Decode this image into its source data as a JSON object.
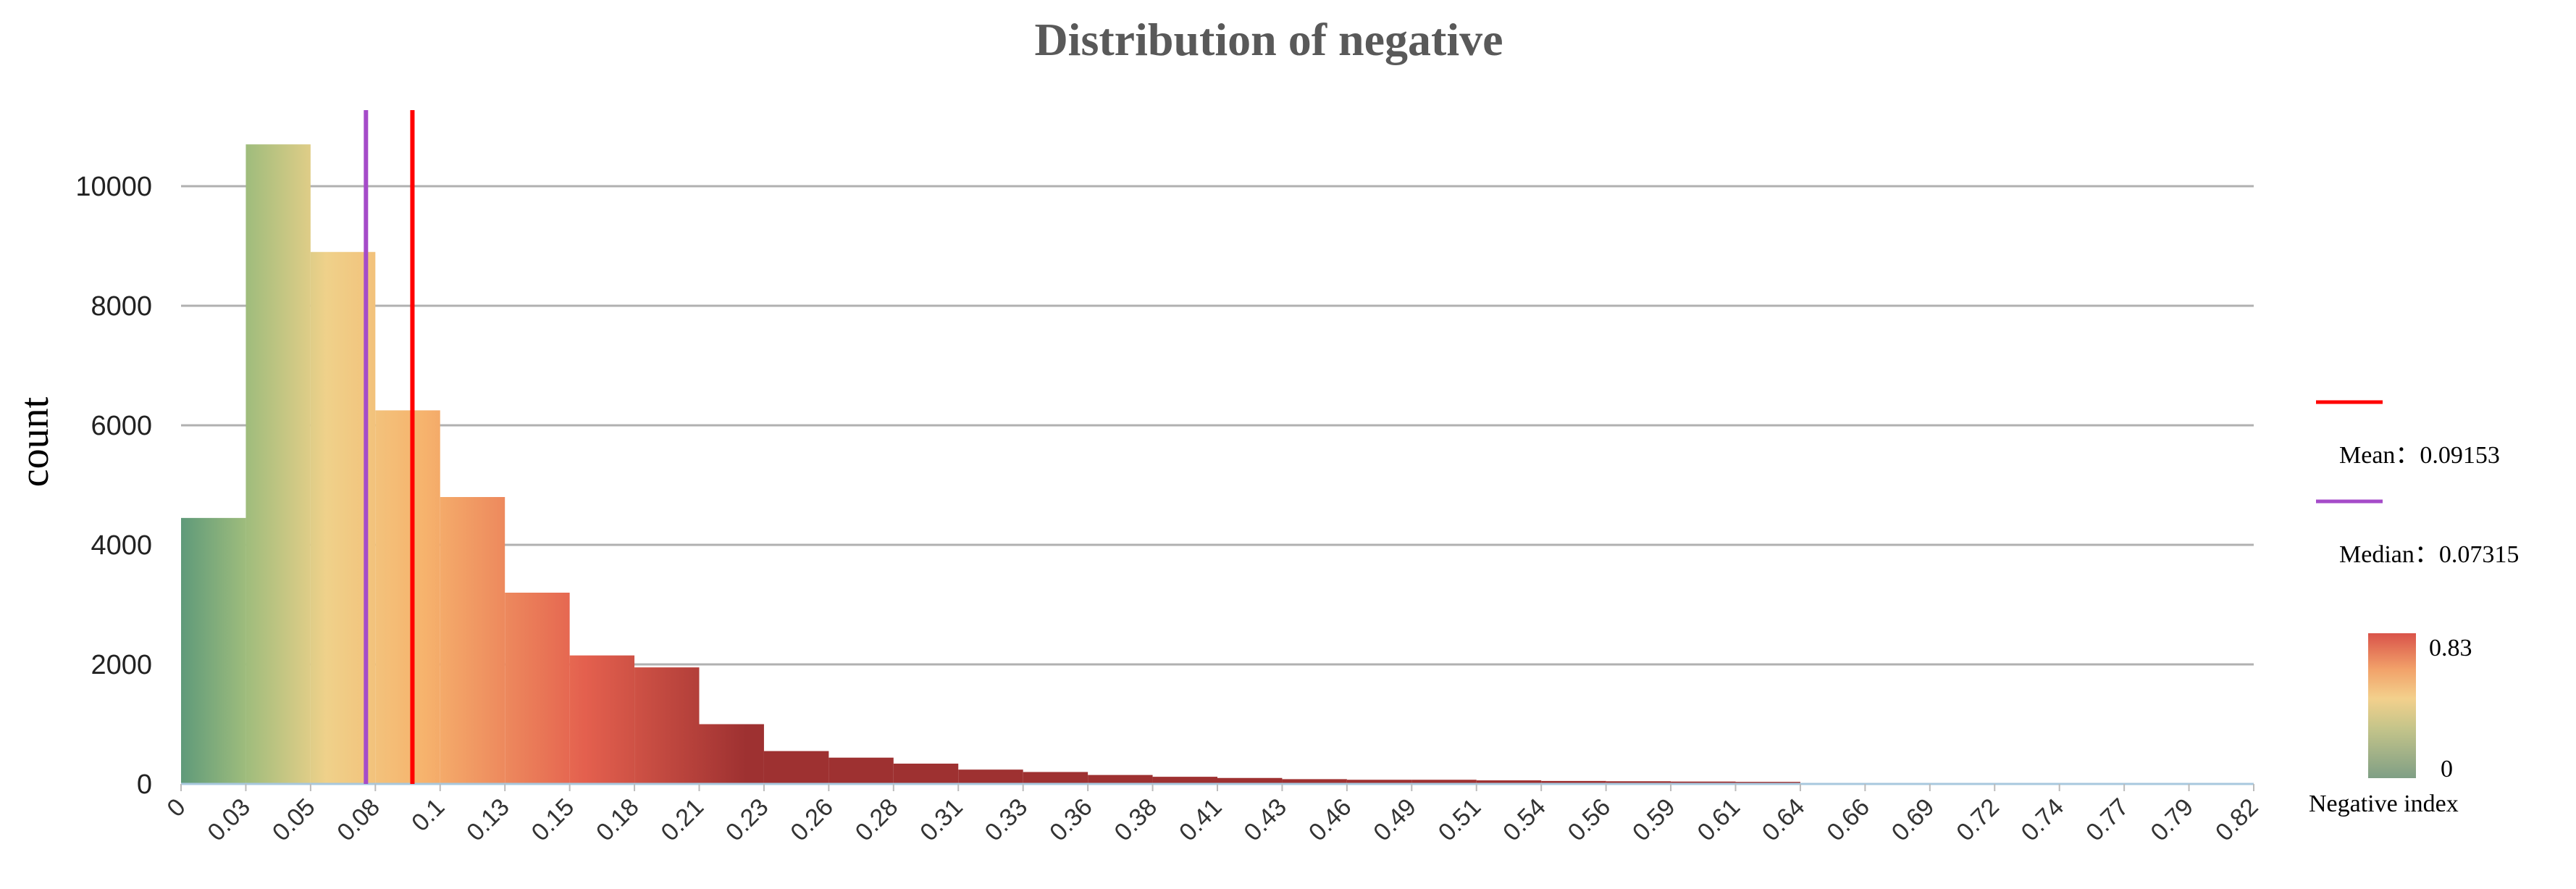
{
  "chart_data": {
    "type": "bar",
    "title": "Distribution of negative",
    "xlabel": "",
    "ylabel": "count",
    "ylim": [
      0,
      11000
    ],
    "yticks": [
      0,
      2000,
      4000,
      6000,
      8000,
      10000
    ],
    "grid": true,
    "x_tick_labels": [
      "0",
      "0.03",
      "0.05",
      "0.08",
      "0.1",
      "0.13",
      "0.15",
      "0.18",
      "0.21",
      "0.23",
      "0.26",
      "0.28",
      "0.31",
      "0.33",
      "0.36",
      "0.38",
      "0.41",
      "0.43",
      "0.46",
      "0.49",
      "0.51",
      "0.54",
      "0.56",
      "0.59",
      "0.61",
      "0.64",
      "0.66",
      "0.69",
      "0.72",
      "0.74",
      "0.77",
      "0.79",
      "0.82"
    ],
    "bins": [
      {
        "start": 0,
        "end": 0.03,
        "count": 4450
      },
      {
        "start": 0.03,
        "end": 0.05,
        "count": 10700
      },
      {
        "start": 0.05,
        "end": 0.08,
        "count": 8900
      },
      {
        "start": 0.08,
        "end": 0.1,
        "count": 6250
      },
      {
        "start": 0.1,
        "end": 0.13,
        "count": 4800
      },
      {
        "start": 0.13,
        "end": 0.15,
        "count": 3200
      },
      {
        "start": 0.15,
        "end": 0.18,
        "count": 2150
      },
      {
        "start": 0.18,
        "end": 0.21,
        "count": 1950
      },
      {
        "start": 0.21,
        "end": 0.23,
        "count": 1000
      },
      {
        "start": 0.23,
        "end": 0.26,
        "count": 550
      },
      {
        "start": 0.26,
        "end": 0.28,
        "count": 440
      },
      {
        "start": 0.28,
        "end": 0.31,
        "count": 340
      },
      {
        "start": 0.31,
        "end": 0.33,
        "count": 240
      },
      {
        "start": 0.33,
        "end": 0.36,
        "count": 200
      },
      {
        "start": 0.36,
        "end": 0.38,
        "count": 150
      },
      {
        "start": 0.38,
        "end": 0.41,
        "count": 120
      },
      {
        "start": 0.41,
        "end": 0.43,
        "count": 100
      },
      {
        "start": 0.43,
        "end": 0.46,
        "count": 80
      },
      {
        "start": 0.46,
        "end": 0.49,
        "count": 70
      },
      {
        "start": 0.49,
        "end": 0.51,
        "count": 70
      },
      {
        "start": 0.51,
        "end": 0.54,
        "count": 60
      },
      {
        "start": 0.54,
        "end": 0.56,
        "count": 50
      },
      {
        "start": 0.56,
        "end": 0.59,
        "count": 45
      },
      {
        "start": 0.59,
        "end": 0.61,
        "count": 40
      },
      {
        "start": 0.61,
        "end": 0.64,
        "count": 35
      },
      {
        "start": 0.64,
        "end": 0.66,
        "count": 10
      },
      {
        "start": 0.66,
        "end": 0.69,
        "count": 8
      },
      {
        "start": 0.69,
        "end": 0.72,
        "count": 6
      },
      {
        "start": 0.72,
        "end": 0.74,
        "count": 5
      },
      {
        "start": 0.74,
        "end": 0.77,
        "count": 4
      },
      {
        "start": 0.77,
        "end": 0.79,
        "count": 3
      },
      {
        "start": 0.79,
        "end": 0.82,
        "count": 3
      }
    ],
    "reference_lines": [
      {
        "name": "Mean",
        "label": "Mean：0.09153",
        "value": 0.09153,
        "color": "#ff0000"
      },
      {
        "name": "Median",
        "label": "Median：0.07315",
        "value": 0.07315,
        "color": "#a54bc9"
      }
    ],
    "colorbar": {
      "title": "Negative index",
      "min_label": "0",
      "max_label": "0.83",
      "colors": [
        "#5f9a7a",
        "#9ebc7c",
        "#efd18a",
        "#f6b36d",
        "#e4604e",
        "#9e3131"
      ]
    },
    "legend_position": "right"
  }
}
